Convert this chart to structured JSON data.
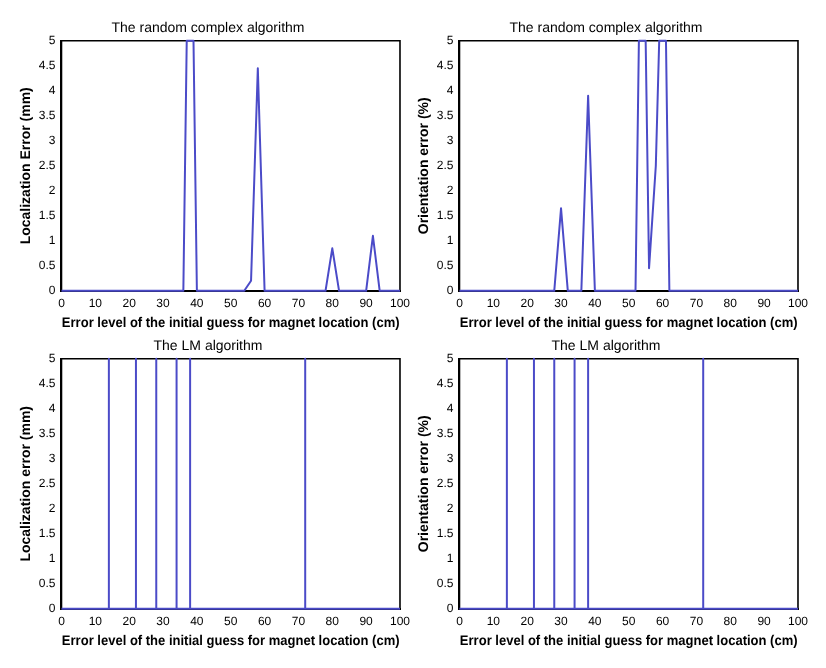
{
  "chart_data": [
    {
      "type": "line",
      "title": "The random complex algorithm",
      "xlabel": "Error level of the initial guess for magnet location (cm)",
      "ylabel": "Localization Error (mm)",
      "xlim": [
        0,
        100
      ],
      "ylim": [
        0,
        5
      ],
      "xticks": [
        0,
        10,
        20,
        30,
        40,
        50,
        60,
        70,
        80,
        90,
        100
      ],
      "yticks": [
        0,
        0.5,
        1,
        1.5,
        2,
        2.5,
        3,
        3.5,
        4,
        4.5,
        5
      ],
      "grid": false,
      "legend": false,
      "marker": "none",
      "series": [
        {
          "color": "#4b4bc8",
          "x": [
            0,
            36,
            37,
            39,
            40,
            54,
            56,
            58,
            60,
            78,
            80,
            82,
            90,
            92,
            94,
            100
          ],
          "values": [
            0,
            0,
            5,
            5,
            0,
            0,
            0.2,
            4.45,
            0,
            0,
            0.85,
            0,
            0,
            1.1,
            0,
            0
          ]
        }
      ]
    },
    {
      "type": "line",
      "title": "The random complex algorithm",
      "xlabel": "Error level of the initial guess for magnet location (cm)",
      "ylabel": "Orientation error (%)",
      "xlim": [
        0,
        100
      ],
      "ylim": [
        0,
        5
      ],
      "xticks": [
        0,
        10,
        20,
        30,
        40,
        50,
        60,
        70,
        80,
        90,
        100
      ],
      "yticks": [
        0,
        0.5,
        1,
        1.5,
        2,
        2.5,
        3,
        3.5,
        4,
        4.5,
        5
      ],
      "grid": false,
      "legend": false,
      "marker": "none",
      "series": [
        {
          "color": "#4b4bc8",
          "x": [
            0,
            28,
            30,
            32,
            36,
            38,
            40,
            52,
            53,
            55,
            56,
            58,
            59,
            61,
            62,
            100
          ],
          "values": [
            0,
            0,
            1.65,
            0,
            0,
            3.9,
            0,
            0,
            5,
            5,
            0.45,
            2.5,
            5,
            5,
            0,
            0
          ]
        }
      ]
    },
    {
      "type": "line",
      "title": "The LM algorithm",
      "xlabel": "Error level of the initial guess for magnet location (cm)",
      "ylabel": "Localization error (mm)",
      "xlim": [
        0,
        100
      ],
      "ylim": [
        0,
        5
      ],
      "xticks": [
        0,
        10,
        20,
        30,
        40,
        50,
        60,
        70,
        80,
        90,
        100
      ],
      "yticks": [
        0,
        0.5,
        1,
        1.5,
        2,
        2.5,
        3,
        3.5,
        4,
        4.5,
        5
      ],
      "grid": false,
      "legend": false,
      "marker": "none",
      "series": [
        {
          "color": "#4b4bc8",
          "x": [
            0,
            14,
            14,
            14,
            22,
            22,
            22,
            28,
            28,
            28,
            34,
            34,
            34,
            38,
            38,
            38,
            72,
            72,
            72,
            100
          ],
          "values": [
            0,
            0,
            5,
            0,
            0,
            5,
            0,
            0,
            5,
            0,
            0,
            5,
            0,
            0,
            5,
            0,
            0,
            5,
            0,
            0
          ]
        }
      ]
    },
    {
      "type": "line",
      "title": "The LM algorithm",
      "xlabel": "Error level of the initial guess for magnet location (cm)",
      "ylabel": "Orientation error (%)",
      "xlim": [
        0,
        100
      ],
      "ylim": [
        0,
        5
      ],
      "xticks": [
        0,
        10,
        20,
        30,
        40,
        50,
        60,
        70,
        80,
        90,
        100
      ],
      "yticks": [
        0,
        0.5,
        1,
        1.5,
        2,
        2.5,
        3,
        3.5,
        4,
        4.5,
        5
      ],
      "grid": false,
      "legend": false,
      "marker": "none",
      "series": [
        {
          "color": "#4b4bc8",
          "x": [
            0,
            14,
            14,
            14,
            22,
            22,
            22,
            28,
            28,
            28,
            34,
            34,
            34,
            38,
            38,
            38,
            72,
            72,
            72,
            100
          ],
          "values": [
            0,
            0,
            5,
            0,
            0,
            5,
            0,
            0,
            5,
            0,
            0,
            5,
            0,
            0,
            5,
            0,
            0,
            5,
            0,
            0
          ]
        }
      ]
    }
  ]
}
